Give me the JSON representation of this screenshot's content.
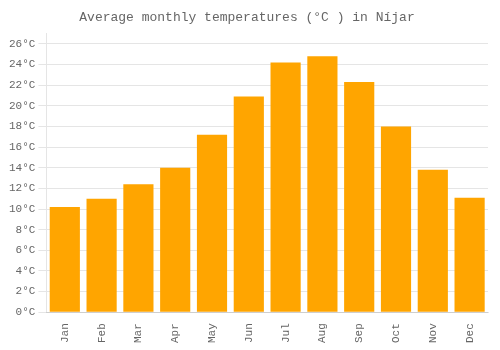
{
  "chart_data": {
    "type": "bar",
    "title": "Average monthly temperatures (°C ) in Níjar",
    "categories": [
      "Jan",
      "Feb",
      "Mar",
      "Apr",
      "May",
      "Jun",
      "Jul",
      "Aug",
      "Sep",
      "Oct",
      "Nov",
      "Dec"
    ],
    "values": [
      10.2,
      11.0,
      12.4,
      14.0,
      17.2,
      20.9,
      24.2,
      24.8,
      22.3,
      18.0,
      13.8,
      11.1
    ],
    "color": "#FFA500",
    "ylim": [
      0,
      27
    ],
    "yticks": [
      {
        "value": 0,
        "label": "0°C"
      },
      {
        "value": 2,
        "label": "2°C"
      },
      {
        "value": 4,
        "label": "4°C"
      },
      {
        "value": 6,
        "label": "6°C"
      },
      {
        "value": 8,
        "label": "8°C"
      },
      {
        "value": 10,
        "label": "10°C"
      },
      {
        "value": 12,
        "label": "12°C"
      },
      {
        "value": 14,
        "label": "14°C"
      },
      {
        "value": 16,
        "label": "16°C"
      },
      {
        "value": 18,
        "label": "18°C"
      },
      {
        "value": 20,
        "label": "20°C"
      },
      {
        "value": 22,
        "label": "22°C"
      },
      {
        "value": 24,
        "label": "24°C"
      },
      {
        "value": 26,
        "label": "26°C"
      }
    ],
    "grid": true
  }
}
